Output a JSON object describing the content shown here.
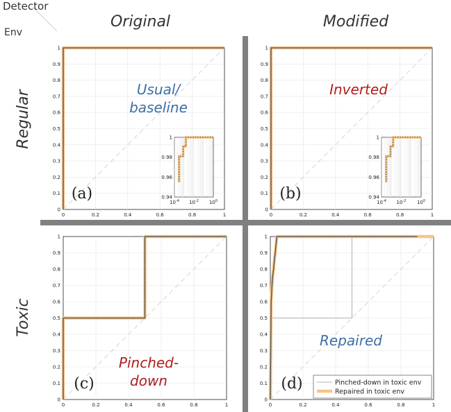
{
  "header": {
    "detector_label": "Detector",
    "env_label": "Env",
    "col_original": "Original",
    "col_modified": "Modified",
    "row_regular": "Regular",
    "row_toxic": "Toxic"
  },
  "colors": {
    "orange": "#f5c58a",
    "dark": "#4d4d4d",
    "blue_label": "#3d6fa6",
    "red_label": "#b01c1c",
    "separator": "#808080",
    "diagonal": "#d4d4d4",
    "grid": "#e4e4e4"
  },
  "chart_data": [
    {
      "type": "line",
      "panel_label": "(a)",
      "annotation": "Usual/ baseline",
      "annotation_color": "blue",
      "xlim": [
        0,
        1
      ],
      "ylim": [
        0,
        1
      ],
      "xticks": [
        "0",
        "0.2",
        "0.4",
        "0.6",
        "0.8",
        "1"
      ],
      "yticks": [
        "0",
        "0.1",
        "0.2",
        "0.3",
        "0.4",
        "0.5",
        "0.6",
        "0.7",
        "0.8",
        "0.9",
        "1"
      ],
      "grid": true,
      "series": [
        {
          "style": "orange-wide",
          "x": [
            0,
            0,
            1
          ],
          "y": [
            0,
            1,
            1
          ]
        },
        {
          "style": "dark-thin",
          "x": [
            0,
            0,
            1
          ],
          "y": [
            0,
            1,
            1
          ]
        }
      ],
      "inset": {
        "xscale": "log",
        "xlim": [
          0.0001,
          1
        ],
        "ylim": [
          0.94,
          1
        ],
        "xticks": [
          "10^-4",
          "10^-2",
          "10^0"
        ],
        "yticks": [
          "0.94",
          "0.96",
          "0.98",
          "1"
        ],
        "series": [
          {
            "style": "orange-wide",
            "x": [
              0.0003,
              0.0003,
              0.0008,
              0.0008,
              0.0015,
              0.0015,
              1
            ],
            "y": [
              0.955,
              0.981,
              0.981,
              0.991,
              0.991,
              1,
              1
            ]
          },
          {
            "style": "dark-dotted",
            "x": [
              0.0003,
              0.0003,
              0.0008,
              0.0008,
              0.0015,
              0.0015,
              1
            ],
            "y": [
              0.955,
              0.981,
              0.981,
              0.991,
              0.991,
              1,
              1
            ]
          }
        ]
      }
    },
    {
      "type": "line",
      "panel_label": "(b)",
      "annotation": "Inverted",
      "annotation_color": "red",
      "xlim": [
        0,
        1
      ],
      "ylim": [
        0,
        1
      ],
      "xticks": [
        "0",
        "0.2",
        "0.4",
        "0.6",
        "0.8",
        "1"
      ],
      "yticks": [
        "0",
        "0.1",
        "0.2",
        "0.3",
        "0.4",
        "0.5",
        "0.6",
        "0.7",
        "0.8",
        "0.9",
        "1"
      ],
      "grid": true,
      "series": [
        {
          "style": "orange-wide",
          "x": [
            0,
            0,
            1
          ],
          "y": [
            0,
            1,
            1
          ]
        },
        {
          "style": "dark-thin",
          "x": [
            0,
            0,
            1
          ],
          "y": [
            0,
            1,
            1
          ]
        }
      ],
      "inset": {
        "xscale": "log",
        "xlim": [
          0.0001,
          1
        ],
        "ylim": [
          0.94,
          1
        ],
        "xticks": [
          "10^-4",
          "10^-2",
          "10^0"
        ],
        "yticks": [
          "0.94",
          "0.96",
          "0.98",
          "1"
        ],
        "series": [
          {
            "style": "orange-wide",
            "x": [
              0.0003,
              0.0003,
              0.0008,
              0.0008,
              0.0015,
              0.0015,
              1
            ],
            "y": [
              0.955,
              0.981,
              0.981,
              0.991,
              0.991,
              1,
              1
            ]
          },
          {
            "style": "dark-dotted",
            "x": [
              0.0003,
              0.0003,
              0.0008,
              0.0008,
              0.0015,
              0.0015,
              1
            ],
            "y": [
              0.955,
              0.981,
              0.981,
              0.991,
              0.991,
              1,
              1
            ]
          }
        ]
      }
    },
    {
      "type": "line",
      "panel_label": "(c)",
      "annotation": "Pinched- down",
      "annotation_color": "red",
      "xlim": [
        0,
        1
      ],
      "ylim": [
        0,
        1
      ],
      "xticks": [
        "0",
        "0.2",
        "0.4",
        "0.6",
        "0.8",
        "1"
      ],
      "yticks": [
        "0",
        "0.1",
        "0.2",
        "0.3",
        "0.4",
        "0.5",
        "0.6",
        "0.7",
        "0.8",
        "0.9",
        "1"
      ],
      "grid": true,
      "series": [
        {
          "style": "orange-wide",
          "x": [
            0,
            0,
            0.5,
            0.5,
            1
          ],
          "y": [
            0,
            0.5,
            0.5,
            1,
            1
          ]
        },
        {
          "style": "dark-thin",
          "x": [
            0,
            0,
            0.5,
            0.5,
            1
          ],
          "y": [
            0,
            0.5,
            0.5,
            1,
            1
          ]
        }
      ]
    },
    {
      "type": "line",
      "panel_label": "(d)",
      "annotation": "Repaired",
      "annotation_color": "blue",
      "xlim": [
        0,
        1
      ],
      "ylim": [
        0,
        1
      ],
      "xticks": [
        "0",
        "0.2",
        "0.4",
        "0.6",
        "0.8",
        "1"
      ],
      "yticks": [
        "0",
        "0.1",
        "0.2",
        "0.3",
        "0.4",
        "0.5",
        "0.6",
        "0.7",
        "0.8",
        "0.9",
        "1"
      ],
      "grid": true,
      "legend": {
        "position": "bottom-right"
      },
      "series": [
        {
          "name": "Pinched-down in toxic env",
          "style": "gray-thin",
          "x": [
            0,
            0,
            0.5,
            0.5,
            1
          ],
          "y": [
            0,
            0.5,
            0.5,
            1,
            1
          ]
        },
        {
          "name": "Repaired in toxic env",
          "style": "orange-wide",
          "x": [
            0,
            0.005,
            0.01,
            0.015,
            0.02,
            0.025,
            0.03,
            0.035,
            0.04,
            1
          ],
          "y": [
            0,
            0.6,
            0.7,
            0.76,
            0.8,
            0.86,
            0.9,
            0.95,
            1,
            1
          ]
        },
        {
          "style": "dark-thin",
          "x": [
            0,
            0.005,
            0.01,
            0.015,
            0.02,
            0.025,
            0.03,
            0.035,
            0.04,
            0.9
          ],
          "y": [
            0,
            0.6,
            0.7,
            0.76,
            0.8,
            0.86,
            0.9,
            0.95,
            1,
            1
          ]
        }
      ]
    }
  ]
}
